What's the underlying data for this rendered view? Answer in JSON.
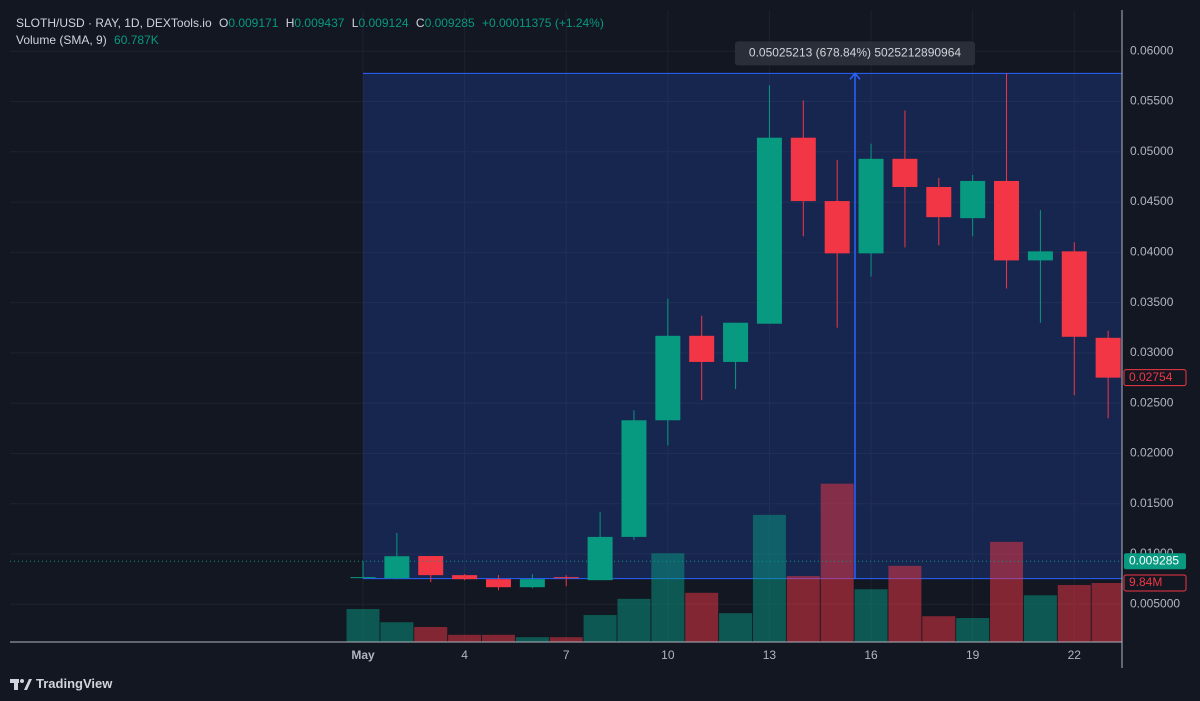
{
  "header": {
    "symbol": "SLOTH/USD · RAY, 1D, DEXTools.io",
    "o_key": "O",
    "o": "0.009171",
    "h_key": "H",
    "h": "0.009437",
    "l_key": "L",
    "l": "0.009124",
    "c_key": "C",
    "change": "+0.00011375 (+1.24%)",
    "volume_title": "Volume (SMA, 9)",
    "volume_sma": "60.787K"
  },
  "footer": {
    "brand": "TradingView"
  },
  "chart_data": {
    "type": "candlestick",
    "categories": [
      "May",
      null,
      null,
      "4",
      null,
      null,
      "7",
      null,
      null,
      "10",
      null,
      null,
      "13",
      null,
      null,
      "16",
      null,
      null,
      "19",
      null,
      null,
      "22",
      null
    ],
    "open": [
      0.0076,
      0.00759,
      0.0098,
      0.0079,
      0.0075,
      0.0067,
      0.0077,
      0.0074,
      0.0117,
      0.0233,
      0.0317,
      0.0291,
      0.0329,
      0.0514,
      0.0451,
      0.0399,
      0.0493,
      0.0465,
      0.0434,
      0.0471,
      0.0392,
      0.0401,
      0.0315
    ],
    "high": [
      0.0093,
      0.01209,
      0.0098,
      0.008,
      0.0079,
      0.008,
      0.0079,
      0.0142,
      0.0243,
      0.0354,
      0.0337,
      0.033,
      0.0566,
      0.0551,
      0.0492,
      0.0508,
      0.0541,
      0.0474,
      0.0477,
      0.0578,
      0.0442,
      0.041,
      0.0322
    ],
    "low": [
      0.0076,
      0.0075,
      0.0072,
      0.0074,
      0.0064,
      0.0066,
      0.0068,
      0.0074,
      0.0114,
      0.0208,
      0.0253,
      0.0264,
      0.0329,
      0.0416,
      0.0325,
      0.0376,
      0.0405,
      0.0407,
      0.0416,
      0.0364,
      0.033,
      0.0258,
      0.0235
    ],
    "close": [
      0.0077,
      0.00978,
      0.0079,
      0.0075,
      0.0067,
      0.0075,
      0.0076,
      0.0117,
      0.0233,
      0.0317,
      0.0291,
      0.033,
      0.0514,
      0.0451,
      0.0399,
      0.0493,
      0.0465,
      0.0435,
      0.0471,
      0.0392,
      0.0401,
      0.0316,
      0.02754
    ],
    "volume": [
      5500000,
      3300000,
      2500000,
      1200000,
      1200000,
      800000,
      800000,
      4500000,
      7200000,
      14800000,
      8200000,
      4800000,
      21200000,
      11000000,
      26400000,
      8800000,
      12700000,
      4300000,
      4000000,
      16700000,
      7800000,
      9500000,
      9840000
    ],
    "volume_value_labels": [
      null,
      null,
      null,
      null,
      null,
      null,
      null,
      null,
      null,
      null,
      null,
      null,
      null,
      null,
      null,
      null,
      null,
      null,
      null,
      null,
      null,
      null,
      "9.84M"
    ],
    "up_color": "#089981",
    "down_color": "#f23645",
    "ylim": [
      0.00125,
      0.0641
    ],
    "yticks": [
      {
        "value": 0.005,
        "label": "0.005000"
      },
      {
        "value": 0.01,
        "label": "0.01000"
      },
      {
        "value": 0.015,
        "label": "0.01500"
      },
      {
        "value": 0.02,
        "label": "0.02000"
      },
      {
        "value": 0.025,
        "label": "0.02500"
      },
      {
        "value": 0.03,
        "label": "0.03000"
      },
      {
        "value": 0.035,
        "label": "0.03500"
      },
      {
        "value": 0.04,
        "label": "0.04000"
      },
      {
        "value": 0.045,
        "label": "0.04500"
      },
      {
        "value": 0.05,
        "label": "0.05000"
      },
      {
        "value": 0.055,
        "label": "0.05500"
      },
      {
        "value": 0.06,
        "label": "0.06000"
      }
    ],
    "y2lim": [
      0,
      105400000
    ],
    "price_line": 0.009285,
    "measure": {
      "label": "0.05025213 (678.84%) 5025212890964",
      "from": 0.00755,
      "to": 0.0578
    },
    "grid": true
  }
}
